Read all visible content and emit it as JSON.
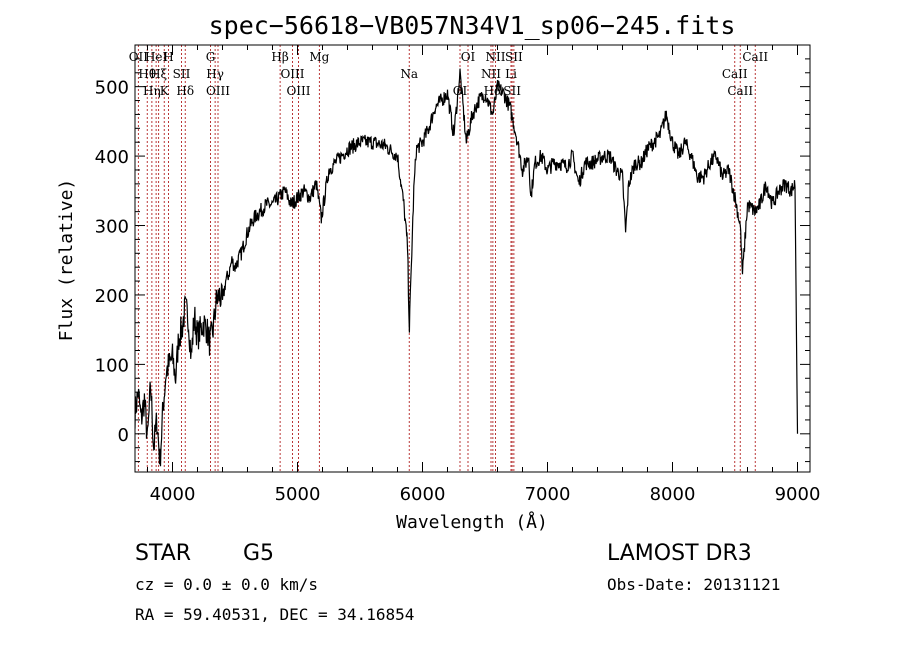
{
  "chart_data": {
    "type": "line",
    "title": "spec−56618−VB057N34V1_sp06−245.fits",
    "xlabel": "Wavelength (Å)",
    "ylabel": "Flux (relative)",
    "xlim": [
      3700,
      9100
    ],
    "ylim": [
      -55,
      560
    ],
    "xticks": [
      4000,
      5000,
      6000,
      7000,
      8000,
      9000
    ],
    "yticks": [
      0,
      100,
      200,
      300,
      400,
      500
    ],
    "series": [
      {
        "name": "flux",
        "x": [
          3700,
          3725,
          3750,
          3775,
          3800,
          3825,
          3850,
          3875,
          3900,
          3925,
          3950,
          3975,
          4000,
          4025,
          4050,
          4075,
          4100,
          4125,
          4150,
          4175,
          4200,
          4225,
          4250,
          4275,
          4300,
          4325,
          4350,
          4375,
          4400,
          4425,
          4450,
          4475,
          4500,
          4550,
          4600,
          4650,
          4700,
          4750,
          4800,
          4850,
          4900,
          4950,
          5000,
          5050,
          5100,
          5150,
          5190,
          5250,
          5300,
          5400,
          5500,
          5600,
          5700,
          5800,
          5850,
          5880,
          5895,
          5910,
          5930,
          5950,
          6000,
          6050,
          6100,
          6150,
          6200,
          6250,
          6300,
          6350,
          6400,
          6450,
          6500,
          6563,
          6600,
          6650,
          6700,
          6750,
          6800,
          6850,
          6866,
          6900,
          6950,
          7000,
          7050,
          7100,
          7150,
          7200,
          7250,
          7300,
          7350,
          7400,
          7450,
          7500,
          7550,
          7600,
          7625,
          7650,
          7700,
          7750,
          7800,
          7850,
          7900,
          7950,
          8000,
          8050,
          8100,
          8150,
          8200,
          8250,
          8300,
          8350,
          8400,
          8450,
          8500,
          8542,
          8560,
          8600,
          8662,
          8700,
          8750,
          8800,
          8850,
          8900,
          8950,
          8980,
          9000
        ],
        "y": [
          30,
          60,
          20,
          50,
          -10,
          70,
          -20,
          20,
          -40,
          40,
          90,
          100,
          110,
          80,
          140,
          150,
          180,
          170,
          110,
          170,
          140,
          150,
          160,
          150,
          130,
          150,
          190,
          200,
          190,
          220,
          230,
          250,
          240,
          260,
          290,
          310,
          320,
          330,
          330,
          340,
          350,
          330,
          340,
          350,
          340,
          360,
          310,
          380,
          390,
          410,
          420,
          420,
          415,
          400,
          330,
          270,
          150,
          240,
          350,
          410,
          420,
          440,
          470,
          480,
          490,
          430,
          520,
          420,
          460,
          480,
          490,
          460,
          500,
          490,
          470,
          430,
          380,
          400,
          340,
          390,
          400,
          380,
          390,
          390,
          385,
          400,
          360,
          390,
          390,
          395,
          400,
          400,
          380,
          370,
          290,
          360,
          390,
          390,
          410,
          420,
          430,
          460,
          420,
          400,
          420,
          400,
          370,
          370,
          390,
          400,
          370,
          380,
          340,
          300,
          230,
          330,
          320,
          330,
          360,
          330,
          350,
          360,
          350,
          360,
          0
        ]
      }
    ],
    "line_markers": [
      {
        "wavelength": 3727,
        "label": "OII"
      },
      {
        "wavelength": 3798,
        "label": "Hθ"
      },
      {
        "wavelength": 3835,
        "label": "Hη"
      },
      {
        "wavelength": 3869,
        "label": "HeI"
      },
      {
        "wavelength": 3889,
        "label": "Hξ"
      },
      {
        "wavelength": 3934,
        "label": "K"
      },
      {
        "wavelength": 3968,
        "label": "H"
      },
      {
        "wavelength": 4072,
        "label": "SII"
      },
      {
        "wavelength": 4102,
        "label": "Hδ"
      },
      {
        "wavelength": 4304,
        "label": "G"
      },
      {
        "wavelength": 4341,
        "label": "Hγ"
      },
      {
        "wavelength": 4364,
        "label": "OIII"
      },
      {
        "wavelength": 4861,
        "label": "Hβ"
      },
      {
        "wavelength": 4960,
        "label": "OIII"
      },
      {
        "wavelength": 5008,
        "label": "OIII"
      },
      {
        "wavelength": 5175,
        "label": "Mg"
      },
      {
        "wavelength": 5894,
        "label": "Na"
      },
      {
        "wavelength": 6300,
        "label": "OI"
      },
      {
        "wavelength": 6364,
        "label": "OI"
      },
      {
        "wavelength": 6548,
        "label": "NII"
      },
      {
        "wavelength": 6563,
        "label": "Hα"
      },
      {
        "wavelength": 6584,
        "label": "NII"
      },
      {
        "wavelength": 6708,
        "label": "Li"
      },
      {
        "wavelength": 6717,
        "label": "SII"
      },
      {
        "wavelength": 6731,
        "label": "SII"
      },
      {
        "wavelength": 8498,
        "label": "CaII"
      },
      {
        "wavelength": 8542,
        "label": "CaII"
      },
      {
        "wavelength": 8662,
        "label": "CaII"
      }
    ],
    "colors": {
      "spectrum": "#000000",
      "marker_line": "#b22222",
      "axes": "#000000"
    }
  },
  "info": {
    "object_class": "STAR",
    "subclass": "G5",
    "survey": "LAMOST DR3",
    "velocity": "cz = 0.0 ± 0.0 km/s",
    "obs_date": "Obs-Date: 20131121",
    "coords": "RA =  59.40531, DEC =  34.16854"
  }
}
